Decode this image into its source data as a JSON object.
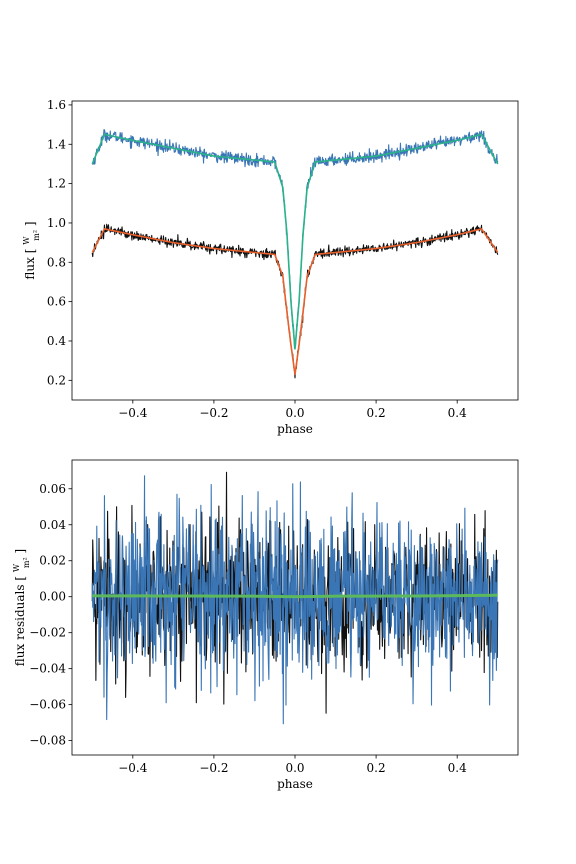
{
  "chart_data": [
    {
      "type": "line",
      "xlabel": "phase",
      "ylabel": "flux [W/m²]",
      "ylabel_parts": {
        "prefix": "flux [",
        "num": "W",
        "den": "m²",
        "suffix": "]"
      },
      "xlim": [
        -0.55,
        0.55
      ],
      "ylim": [
        0.1,
        1.62
      ],
      "xticks": [
        -0.4,
        -0.2,
        0.0,
        0.2,
        0.4
      ],
      "xtick_labels": [
        "−0.4",
        "−0.2",
        "0.0",
        "0.2",
        "0.4"
      ],
      "yticks": [
        0.2,
        0.4,
        0.6,
        0.8,
        1.0,
        1.2,
        1.4,
        1.6
      ],
      "ytick_labels": [
        "0.2",
        "0.4",
        "0.6",
        "0.8",
        "1.0",
        "1.2",
        "1.4",
        "1.6"
      ],
      "grid": false,
      "legend": "none",
      "series": [
        {
          "role": "observed",
          "color": "#3a75b5",
          "noise": 0.025,
          "x": [
            -0.5,
            -0.47,
            -0.4,
            -0.3,
            -0.2,
            -0.1,
            -0.05,
            -0.03,
            -0.02,
            -0.01,
            0.0,
            0.01,
            0.02,
            0.03,
            0.05,
            0.1,
            0.2,
            0.3,
            0.4,
            0.46,
            0.5
          ],
          "y": [
            1.3,
            1.45,
            1.42,
            1.38,
            1.34,
            1.32,
            1.31,
            1.18,
            0.95,
            0.6,
            0.36,
            0.6,
            0.95,
            1.18,
            1.31,
            1.32,
            1.34,
            1.38,
            1.42,
            1.45,
            1.3
          ]
        },
        {
          "role": "model",
          "color": "#2ab28a",
          "noise": 0,
          "x": [
            -0.5,
            -0.47,
            -0.4,
            -0.3,
            -0.2,
            -0.1,
            -0.05,
            -0.03,
            -0.02,
            -0.01,
            0.0,
            0.01,
            0.02,
            0.03,
            0.05,
            0.1,
            0.2,
            0.3,
            0.4,
            0.46,
            0.5
          ],
          "y": [
            1.3,
            1.45,
            1.42,
            1.38,
            1.34,
            1.32,
            1.31,
            1.18,
            0.95,
            0.6,
            0.36,
            0.6,
            0.95,
            1.18,
            1.31,
            1.32,
            1.34,
            1.38,
            1.42,
            1.45,
            1.3
          ]
        },
        {
          "role": "observed",
          "color": "#111111",
          "noise": 0.02,
          "x": [
            -0.5,
            -0.47,
            -0.4,
            -0.3,
            -0.2,
            -0.1,
            -0.05,
            -0.03,
            -0.02,
            -0.01,
            0.0,
            0.01,
            0.02,
            0.03,
            0.05,
            0.1,
            0.2,
            0.3,
            0.4,
            0.46,
            0.5
          ],
          "y": [
            0.85,
            0.97,
            0.94,
            0.9,
            0.87,
            0.85,
            0.84,
            0.73,
            0.55,
            0.38,
            0.23,
            0.38,
            0.55,
            0.73,
            0.84,
            0.85,
            0.87,
            0.9,
            0.94,
            0.97,
            0.85
          ]
        },
        {
          "role": "model",
          "color": "#e8602c",
          "noise": 0,
          "x": [
            -0.5,
            -0.47,
            -0.4,
            -0.3,
            -0.2,
            -0.1,
            -0.05,
            -0.03,
            -0.02,
            -0.01,
            0.0,
            0.01,
            0.02,
            0.03,
            0.05,
            0.1,
            0.2,
            0.3,
            0.4,
            0.46,
            0.5
          ],
          "y": [
            0.85,
            0.97,
            0.94,
            0.9,
            0.87,
            0.85,
            0.84,
            0.73,
            0.55,
            0.38,
            0.23,
            0.38,
            0.55,
            0.73,
            0.84,
            0.85,
            0.87,
            0.9,
            0.94,
            0.97,
            0.85
          ]
        }
      ]
    },
    {
      "type": "line",
      "xlabel": "phase",
      "ylabel": "flux residuals [W/m²]",
      "ylabel_parts": {
        "prefix": "flux residuals [",
        "num": "W",
        "den": "m²",
        "suffix": "]"
      },
      "xlim": [
        -0.55,
        0.55
      ],
      "ylim": [
        -0.088,
        0.076
      ],
      "xticks": [
        -0.4,
        -0.2,
        0.0,
        0.2,
        0.4
      ],
      "xtick_labels": [
        "−0.4",
        "−0.2",
        "0.0",
        "0.2",
        "0.4"
      ],
      "yticks": [
        -0.08,
        -0.06,
        -0.04,
        -0.02,
        0.0,
        0.02,
        0.04,
        0.06
      ],
      "ytick_labels": [
        "−0.08",
        "−0.06",
        "−0.04",
        "−0.02",
        "0.00",
        "0.02",
        "0.04",
        "0.06"
      ],
      "grid": false,
      "legend": "none",
      "series": [
        {
          "role": "residual",
          "color": "#111111",
          "noise": 0.019,
          "x": [
            -0.5,
            0.5
          ],
          "y": [
            0.0,
            0.0
          ]
        },
        {
          "role": "residual",
          "color": "#3a75b5",
          "noise": 0.024,
          "x": [
            -0.5,
            0.5
          ],
          "y": [
            0.0,
            0.0
          ]
        },
        {
          "role": "model",
          "color": "#5cb85c",
          "noise": 0,
          "x": [
            -0.5,
            -0.3,
            -0.1,
            0.0,
            0.1,
            0.3,
            0.5
          ],
          "y": [
            0.0005,
            0.0004,
            0.0003,
            0.0,
            0.0003,
            0.0004,
            0.0008
          ]
        }
      ]
    }
  ]
}
